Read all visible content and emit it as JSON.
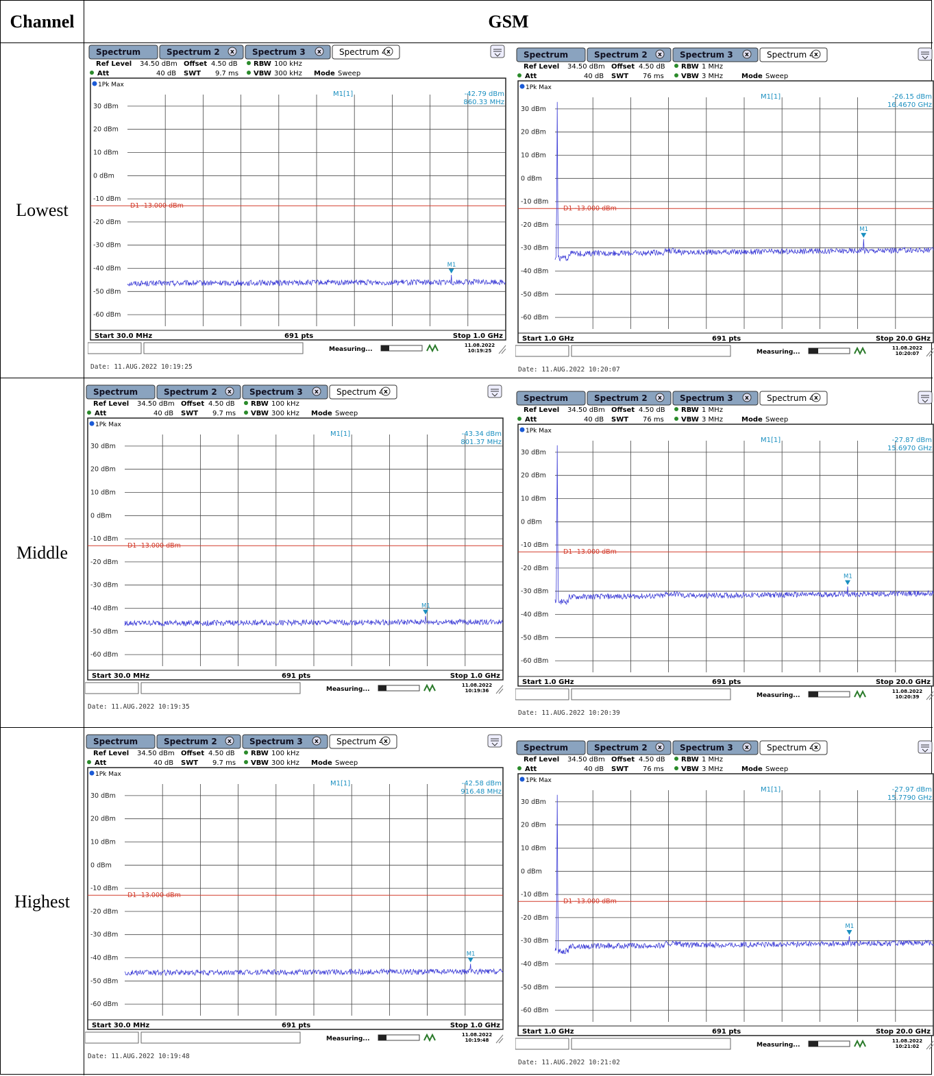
{
  "header": {
    "channel": "Channel",
    "technology": "GSM"
  },
  "rows": [
    {
      "label": "Lowest"
    },
    {
      "label": "Middle"
    },
    {
      "label": "Highest"
    }
  ],
  "ui_common": {
    "tabs": [
      "Spectrum",
      "Spectrum 2",
      "Spectrum 3",
      "Spectrum 4"
    ],
    "ref_level_label": "Ref Level",
    "ref_level": "34.50 dBm",
    "offset_label": "Offset",
    "offset": "4.50 dB",
    "att_label": "Att",
    "att": "40 dB",
    "swt_label": "SWT",
    "rbw_label": "RBW",
    "vbw_label": "VBW",
    "mode_label": "Mode",
    "mode": "Sweep",
    "trace_label": "1Pk Max",
    "marker_name": "M1[1]",
    "marker_short": "M1",
    "limit_label": "D1 -13.000 dBm",
    "pts": "691 pts",
    "status": "Measuring...",
    "yticks": [
      "30 dBm",
      "20 dBm",
      "10 dBm",
      "0 dBm",
      "-10 dBm",
      "-20 dBm",
      "-30 dBm",
      "-40 dBm",
      "-50 dBm",
      "-60 dBm"
    ],
    "colors": {
      "trace": "#3a3ad6",
      "marker": "#1a8fc0",
      "limit": "#d23a2a",
      "tab_active_bg": "#ffffff",
      "tab_bg": "#8aa3bf"
    }
  },
  "chart_data": [
    {
      "type": "line",
      "title": "",
      "panel": "Lowest (30 MHz - 1 GHz)",
      "swt": "9.7 ms",
      "rbw": "100 kHz",
      "vbw": "300 kHz",
      "start": "Start 30.0 MHz",
      "stop": "Stop 1.0 GHz",
      "marker_value": "-42.79 dBm",
      "marker_freq": "860.33 MHz",
      "marker_pos": 0.857,
      "date": "Date: 11.AUG.2022  10:19:25",
      "clock_date": "11.08.2022",
      "clock_time": "10:19:25",
      "ylim": [
        -65,
        35
      ],
      "limit": -13,
      "trace": {
        "x_start_mhz": 30,
        "x_stop_mhz": 1000,
        "noise_floor_dbm": -46.5,
        "peak_dbm": -42.8
      }
    },
    {
      "type": "line",
      "title": "",
      "panel": "Lowest (1 GHz - 20 GHz)",
      "swt": "76 ms",
      "rbw": "1 MHz",
      "vbw": "3 MHz",
      "start": "Start 1.0 GHz",
      "stop": "Stop 20.0 GHz",
      "marker_value": "-26.15 dBm",
      "marker_freq": "16.4670 GHz",
      "marker_pos": 0.815,
      "date": "Date: 11.AUG.2022  10:20:07",
      "clock_date": "11.08.2022",
      "clock_time": "10:20:07",
      "ylim": [
        -65,
        35
      ],
      "limit": -13,
      "trace": {
        "x_start_ghz": 1,
        "x_stop_ghz": 20,
        "noise_floor_dbm": -31,
        "peak_dbm": -26.2,
        "carrier_spike_dbm": 33
      }
    },
    {
      "type": "line",
      "title": "",
      "panel": "Middle (30 MHz - 1 GHz)",
      "swt": "9.7 ms",
      "rbw": "100 kHz",
      "vbw": "300 kHz",
      "start": "Start 30.0 MHz",
      "stop": "Stop 1.0 GHz",
      "marker_value": "-43.34 dBm",
      "marker_freq": "801.37 MHz",
      "marker_pos": 0.795,
      "date": "Date: 11.AUG.2022  10:19:35",
      "clock_date": "11.08.2022",
      "clock_time": "10:19:36",
      "ylim": [
        -65,
        35
      ],
      "limit": -13,
      "trace": {
        "x_start_mhz": 30,
        "x_stop_mhz": 1000,
        "noise_floor_dbm": -46.5,
        "peak_dbm": -43.3
      }
    },
    {
      "type": "line",
      "title": "",
      "panel": "Middle (1 GHz - 20 GHz)",
      "swt": "76 ms",
      "rbw": "1 MHz",
      "vbw": "3 MHz",
      "start": "Start 1.0 GHz",
      "stop": "Stop 20.0 GHz",
      "marker_value": "-27.87 dBm",
      "marker_freq": "15.6970 GHz",
      "marker_pos": 0.774,
      "date": "Date: 11.AUG.2022  10:20:39",
      "clock_date": "11.08.2022",
      "clock_time": "10:20:39",
      "ylim": [
        -65,
        35
      ],
      "limit": -13,
      "trace": {
        "x_start_ghz": 1,
        "x_stop_ghz": 20,
        "noise_floor_dbm": -31,
        "peak_dbm": -27.9,
        "carrier_spike_dbm": 33
      }
    },
    {
      "type": "line",
      "title": "",
      "panel": "Highest (30 MHz - 1 GHz)",
      "swt": "9.7 ms",
      "rbw": "100 kHz",
      "vbw": "300 kHz",
      "start": "Start 30.0 MHz",
      "stop": "Stop 1.0 GHz",
      "marker_value": "-42.58 dBm",
      "marker_freq": "916.48 MHz",
      "marker_pos": 0.914,
      "date": "Date: 11.AUG.2022  10:19:48",
      "clock_date": "11.08.2022",
      "clock_time": "10:19:48",
      "ylim": [
        -65,
        35
      ],
      "limit": -13,
      "trace": {
        "x_start_mhz": 30,
        "x_stop_mhz": 1000,
        "noise_floor_dbm": -46.5,
        "peak_dbm": -42.6
      }
    },
    {
      "type": "line",
      "title": "",
      "panel": "Highest (1 GHz - 20 GHz)",
      "swt": "76 ms",
      "rbw": "1 MHz",
      "vbw": "3 MHz",
      "start": "Start 1.0 GHz",
      "stop": "Stop 20.0 GHz",
      "marker_value": "-27.97 dBm",
      "marker_freq": "15.7790 GHz",
      "marker_pos": 0.778,
      "date": "Date: 11.AUG.2022  10:21:02",
      "clock_date": "11.08.2022",
      "clock_time": "10:21:02",
      "ylim": [
        -65,
        35
      ],
      "limit": -13,
      "trace": {
        "x_start_ghz": 1,
        "x_stop_ghz": 20,
        "noise_floor_dbm": -31,
        "peak_dbm": -28.0,
        "carrier_spike_dbm": 33
      }
    }
  ]
}
